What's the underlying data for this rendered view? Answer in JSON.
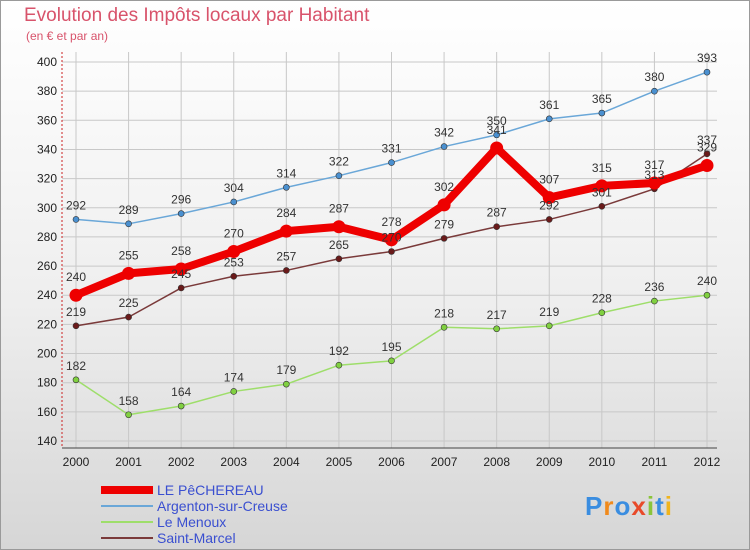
{
  "title": "Evolution des Impôts locaux par Habitant",
  "subtitle": "(en € et par an)",
  "logo": "Proxiti",
  "chart_data": {
    "type": "line",
    "title": "Evolution des Impôts locaux par Habitant",
    "subtitle": "(en € et par an)",
    "xlabel": "",
    "ylabel": "",
    "x": [
      "2000",
      "2001",
      "2002",
      "2003",
      "2004",
      "2005",
      "2006",
      "2007",
      "2008",
      "2009",
      "2010",
      "2011",
      "2012"
    ],
    "ylim": [
      140,
      400
    ],
    "yticks": [
      140,
      160,
      180,
      200,
      220,
      240,
      260,
      280,
      300,
      320,
      340,
      360,
      380,
      400
    ],
    "grid": true,
    "legend_position": "bottom-left",
    "series": [
      {
        "name": "Argenton-sur-Creuse",
        "color": "#6aa7d8",
        "marker": "#4a90d0",
        "values": [
          292,
          289,
          296,
          304,
          314,
          322,
          331,
          342,
          350,
          361,
          365,
          380,
          393
        ]
      },
      {
        "name": "Saint-Marcel",
        "color": "#7a3a3a",
        "marker": "#6a1a1a",
        "values": [
          219,
          225,
          245,
          253,
          257,
          265,
          270,
          279,
          287,
          292,
          301,
          313,
          337
        ]
      },
      {
        "name": "Le Menoux",
        "color": "#9ede6a",
        "marker": "#80d040",
        "values": [
          182,
          158,
          164,
          174,
          179,
          192,
          195,
          218,
          217,
          219,
          228,
          236,
          240
        ]
      },
      {
        "name": "LE PêCHEREAU",
        "color": "#ee0000",
        "marker": "#ee0000",
        "values": [
          240,
          255,
          258,
          270,
          284,
          287,
          278,
          302,
          341,
          307,
          315,
          317,
          329
        ]
      }
    ]
  },
  "legend": [
    {
      "name": "LE PêCHEREAU",
      "color": "#ee0000"
    },
    {
      "name": "Argenton-sur-Creuse",
      "color": "#6aa7d8"
    },
    {
      "name": "Le Menoux",
      "color": "#9ede6a"
    },
    {
      "name": "Saint-Marcel",
      "color": "#7a3a3a"
    }
  ]
}
